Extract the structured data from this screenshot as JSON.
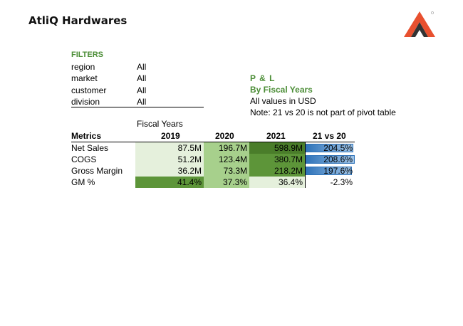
{
  "header": {
    "title": "AtliQ Hardwares",
    "logo_icon": "atliq-logo-icon"
  },
  "filters": {
    "heading": "FILTERS",
    "items": [
      {
        "key": "region",
        "value": "All"
      },
      {
        "key": "market",
        "value": "All"
      },
      {
        "key": "customer",
        "value": "All"
      },
      {
        "key": "division",
        "value": "All"
      }
    ]
  },
  "report": {
    "title": "P & L",
    "subtitle": "By Fiscal Years",
    "units_note": "All values in USD",
    "pivot_note": "Note: 21 vs 20 is not part of pivot table"
  },
  "table": {
    "group_header": "Fiscal Years",
    "columns": [
      "Metrics",
      "2019",
      "2020",
      "2021",
      "21 vs 20"
    ],
    "rows": [
      {
        "metric": "Net Sales",
        "y2019": "87.5M",
        "y2020": "196.7M",
        "y2021": "598.9M",
        "change": "204.5%",
        "change_pct": 204.5
      },
      {
        "metric": "COGS",
        "y2019": "51.2M",
        "y2020": "123.4M",
        "y2021": "380.7M",
        "change": "208.6%",
        "change_pct": 208.6
      },
      {
        "metric": "Gross Margin",
        "y2019": "36.2M",
        "y2020": "73.3M",
        "y2021": "218.2M",
        "change": "197.6%",
        "change_pct": 197.6
      },
      {
        "metric": "GM %",
        "y2019": "41.4%",
        "y2020": "37.3%",
        "y2021": "36.4%",
        "change": "-2.3%",
        "change_pct": -2.3
      }
    ]
  },
  "colors": {
    "accent_green": "#4b8d36",
    "databar_blue": "#2f73b9",
    "row_colors": [
      [
        "#e5f0dc",
        "#a7d08c",
        "#4a7d2a"
      ],
      [
        "#e5f0dc",
        "#a7d08c",
        "#5d9539"
      ],
      [
        "#e5f0dc",
        "#a7d08c",
        "#5d9539"
      ],
      [
        "#5d9539",
        "#a7d08c",
        "#e5f0dc"
      ]
    ]
  }
}
